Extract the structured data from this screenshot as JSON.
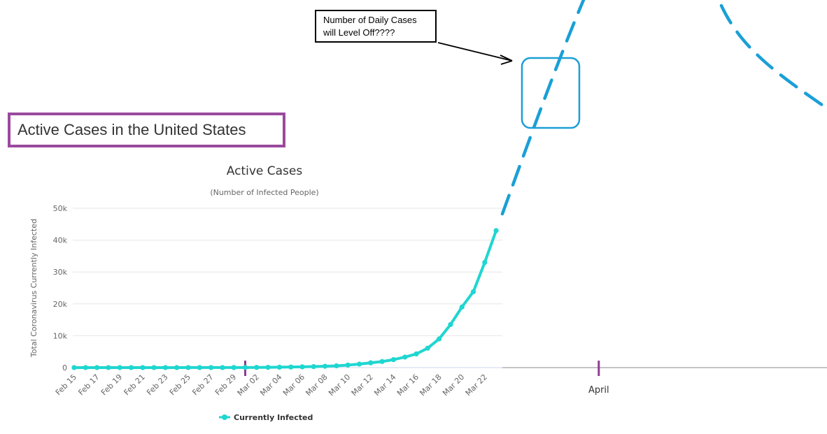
{
  "heading": "Active Cases in the United States",
  "callout": {
    "line1": "Number of Daily Cases",
    "line2": "will Level Off????"
  },
  "colors": {
    "series": "#1fd6d0",
    "projection": "#1a9fd6",
    "frame": "#9b4a9e",
    "marker": "#8e3b91"
  },
  "chart_data": {
    "type": "line",
    "title": "Active Cases",
    "subtitle": "(Number of Infected People)",
    "ylabel": "Total Coronavirus Currently Infected",
    "xlabel": "",
    "ylim": [
      0,
      50000
    ],
    "y_ticks": [
      0,
      10000,
      20000,
      30000,
      40000,
      50000
    ],
    "y_tick_labels": [
      "0",
      "10k",
      "20k",
      "30k",
      "40k",
      "50k"
    ],
    "x_tick_labels": [
      "Feb 15",
      "Feb 17",
      "Feb 19",
      "Feb 21",
      "Feb 23",
      "Feb 25",
      "Feb 27",
      "Feb 29",
      "Mar 02",
      "Mar 04",
      "Mar 06",
      "Mar 08",
      "Mar 10",
      "Mar 12",
      "Mar 14",
      "Mar 16",
      "Mar 18",
      "Mar 20",
      "Mar 22"
    ],
    "legend": "bottom-center",
    "grid": true,
    "series": [
      {
        "name": "Currently Infected",
        "x": [
          "Feb 15",
          "Feb 16",
          "Feb 17",
          "Feb 18",
          "Feb 19",
          "Feb 20",
          "Feb 21",
          "Feb 22",
          "Feb 23",
          "Feb 24",
          "Feb 25",
          "Feb 26",
          "Feb 27",
          "Feb 28",
          "Feb 29",
          "Mar 01",
          "Mar 02",
          "Mar 03",
          "Mar 04",
          "Mar 05",
          "Mar 06",
          "Mar 07",
          "Mar 08",
          "Mar 09",
          "Mar 10",
          "Mar 11",
          "Mar 12",
          "Mar 13",
          "Mar 14",
          "Mar 15",
          "Mar 16",
          "Mar 17",
          "Mar 18",
          "Mar 19",
          "Mar 20",
          "Mar 21",
          "Mar 22",
          "Mar 23"
        ],
        "values": [
          13,
          13,
          13,
          13,
          13,
          13,
          13,
          13,
          13,
          13,
          14,
          14,
          15,
          15,
          20,
          30,
          60,
          90,
          130,
          180,
          240,
          320,
          430,
          560,
          800,
          1100,
          1500,
          1900,
          2500,
          3300,
          4300,
          6100,
          9000,
          13500,
          19000,
          23800,
          33000,
          43000
        ]
      }
    ],
    "annotations": [
      {
        "type": "marker",
        "label": "",
        "x": "Mar 01"
      },
      {
        "type": "marker",
        "label": "April",
        "x": "Apr 01"
      }
    ]
  }
}
